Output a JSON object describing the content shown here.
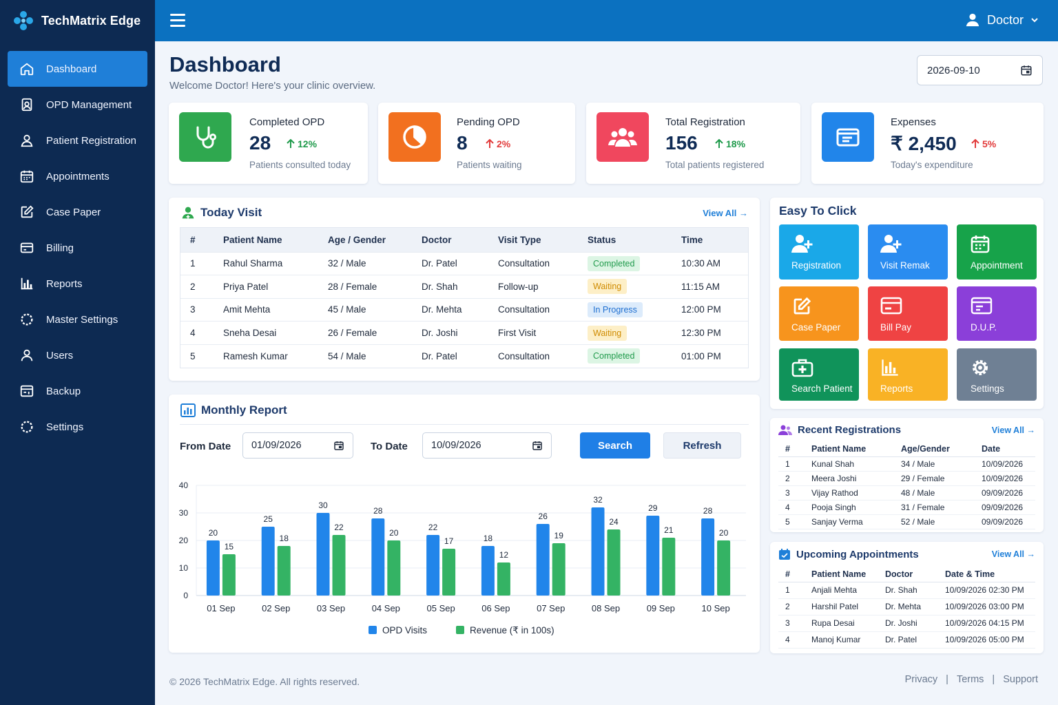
{
  "brand": {
    "title": "TechMatrix Edge"
  },
  "sidebar": {
    "items": [
      {
        "label": "Dashboard",
        "icon": "home-icon",
        "active": true
      },
      {
        "label": "OPD Management",
        "icon": "clipboard-user-icon"
      },
      {
        "label": "Patient Registration",
        "icon": "user-icon"
      },
      {
        "label": "Appointments",
        "icon": "calendar-icon"
      },
      {
        "label": "Case Paper",
        "icon": "edit-icon"
      },
      {
        "label": "Billing",
        "icon": "card-icon"
      },
      {
        "label": "Reports",
        "icon": "bar-chart-icon"
      },
      {
        "label": "Master Settings",
        "icon": "gear-icon"
      },
      {
        "label": "Users",
        "icon": "user-outline-icon"
      },
      {
        "label": "Backup",
        "icon": "backup-icon"
      },
      {
        "label": "Settings",
        "icon": "gear-icon"
      }
    ]
  },
  "topbar": {
    "user_label": "Doctor"
  },
  "header": {
    "title": "Dashboard",
    "subtitle": "Welcome Doctor! Here's your clinic overview.",
    "date": "2026-09-10"
  },
  "stats": [
    {
      "label": "Completed OPD",
      "value": "28",
      "change": "12%",
      "change_color": "#1f9a4b",
      "desc": "Patients consulted today",
      "icon": "stethoscope-icon",
      "color": "#2fa84f"
    },
    {
      "label": "Pending OPD",
      "value": "8",
      "change": "2%",
      "change_color": "#e23b3b",
      "desc": "Patients waiting",
      "icon": "pie-icon",
      "color": "#f2701f"
    },
    {
      "label": "Total Registration",
      "value": "156",
      "change": "18%",
      "change_color": "#1f9a4b",
      "desc": "Total patients registered",
      "icon": "users-icon",
      "color": "#f0475e"
    },
    {
      "label": "Expenses",
      "value": "₹ 2,450",
      "change": "5%",
      "change_color": "#e23b3b",
      "desc": "Today's expenditure",
      "icon": "wallet-icon",
      "color": "#2185ea"
    }
  ],
  "today_visit": {
    "title": "Today Visit",
    "view_all": "View All →",
    "columns": [
      "#",
      "Patient Name",
      "Age / Gender",
      "Doctor",
      "Visit Type",
      "Status",
      "Time"
    ],
    "rows": [
      [
        "1",
        "Rahul Sharma",
        "32 / Male",
        "Dr. Patel",
        "Consultation",
        "Completed",
        "10:30 AM"
      ],
      [
        "2",
        "Priya Patel",
        "28 / Female",
        "Dr. Shah",
        "Follow-up",
        "Waiting",
        "11:15 AM"
      ],
      [
        "3",
        "Amit Mehta",
        "45 / Male",
        "Dr. Mehta",
        "Consultation",
        "In Progress",
        "12:00 PM"
      ],
      [
        "4",
        "Sneha Desai",
        "26 / Female",
        "Dr. Joshi",
        "First Visit",
        "Waiting",
        "12:30 PM"
      ],
      [
        "5",
        "Ramesh Kumar",
        "54 / Male",
        "Dr. Patel",
        "Consultation",
        "Completed",
        "01:00 PM"
      ]
    ]
  },
  "easy": {
    "title": "Easy To Click",
    "tiles": [
      {
        "label": "Registration",
        "color": "#1aa8e8",
        "icon": "user-plus-icon"
      },
      {
        "label": "Visit Remak",
        "color": "#2a8cf0",
        "icon": "user-plus-icon"
      },
      {
        "label": "Appointment",
        "color": "#17a34a",
        "icon": "calendar-icon"
      },
      {
        "label": "Case Paper",
        "color": "#f7941d",
        "icon": "edit-icon"
      },
      {
        "label": "Bill Pay",
        "color": "#ef4343",
        "icon": "card-icon"
      },
      {
        "label": "D.U.P.",
        "color": "#8b3fd9",
        "icon": "window-icon"
      },
      {
        "label": "Search Patient",
        "color": "#10935a",
        "icon": "medkit-icon"
      },
      {
        "label": "Reports",
        "color": "#f9b225",
        "icon": "bar-chart-icon"
      },
      {
        "label": "Settings",
        "color": "#6f8094",
        "icon": "gear-icon"
      }
    ]
  },
  "monthly": {
    "title": "Monthly Report",
    "from_label": "From Date",
    "from_value": "01/09/2026",
    "to_label": "To Date",
    "to_value": "10/09/2026",
    "search_label": "Search",
    "refresh_label": "Refresh"
  },
  "chart_data": {
    "type": "bar",
    "categories": [
      "01 Sep",
      "02 Sep",
      "03 Sep",
      "04 Sep",
      "05 Sep",
      "06 Sep",
      "07 Sep",
      "08 Sep",
      "09 Sep",
      "10 Sep"
    ],
    "series": [
      {
        "name": "OPD Visits",
        "color": "#2185ea",
        "values": [
          20,
          25,
          30,
          28,
          22,
          18,
          26,
          32,
          29,
          28
        ]
      },
      {
        "name": "Revenue (₹ in 100s)",
        "color": "#34b364",
        "values": [
          15,
          18,
          22,
          20,
          17,
          12,
          19,
          24,
          21,
          20
        ]
      }
    ],
    "ylim": [
      0,
      40
    ],
    "yticks": [
      0,
      10,
      20,
      30,
      40
    ],
    "grid": true,
    "legend": "bottom"
  },
  "recent": {
    "title": "Recent Registrations",
    "view_all": "View All →",
    "columns": [
      "#",
      "Patient Name",
      "Age/Gender",
      "Date"
    ],
    "rows": [
      [
        "1",
        "Kunal Shah",
        "34 / Male",
        "10/09/2026"
      ],
      [
        "2",
        "Meera Joshi",
        "29 / Female",
        "10/09/2026"
      ],
      [
        "3",
        "Vijay Rathod",
        "48 / Male",
        "09/09/2026"
      ],
      [
        "4",
        "Pooja Singh",
        "31 / Female",
        "09/09/2026"
      ],
      [
        "5",
        "Sanjay Verma",
        "52 / Male",
        "09/09/2026"
      ]
    ]
  },
  "upcoming": {
    "title": "Upcoming Appointments",
    "view_all": "View All →",
    "columns": [
      "#",
      "Patient Name",
      "Doctor",
      "Date & Time"
    ],
    "rows": [
      [
        "1",
        "Anjali Mehta",
        "Dr. Shah",
        "10/09/2026 02:30 PM"
      ],
      [
        "2",
        "Harshil Patel",
        "Dr. Mehta",
        "10/09/2026 03:00 PM"
      ],
      [
        "3",
        "Rupa Desai",
        "Dr. Joshi",
        "10/09/2026 04:15 PM"
      ],
      [
        "4",
        "Manoj Kumar",
        "Dr. Patel",
        "10/09/2026 05:00 PM"
      ]
    ]
  },
  "footer": {
    "copyright": "© 2026 TechMatrix Edge. All rights reserved.",
    "links": [
      "Privacy",
      "Terms",
      "Support"
    ],
    "separator": "|"
  }
}
